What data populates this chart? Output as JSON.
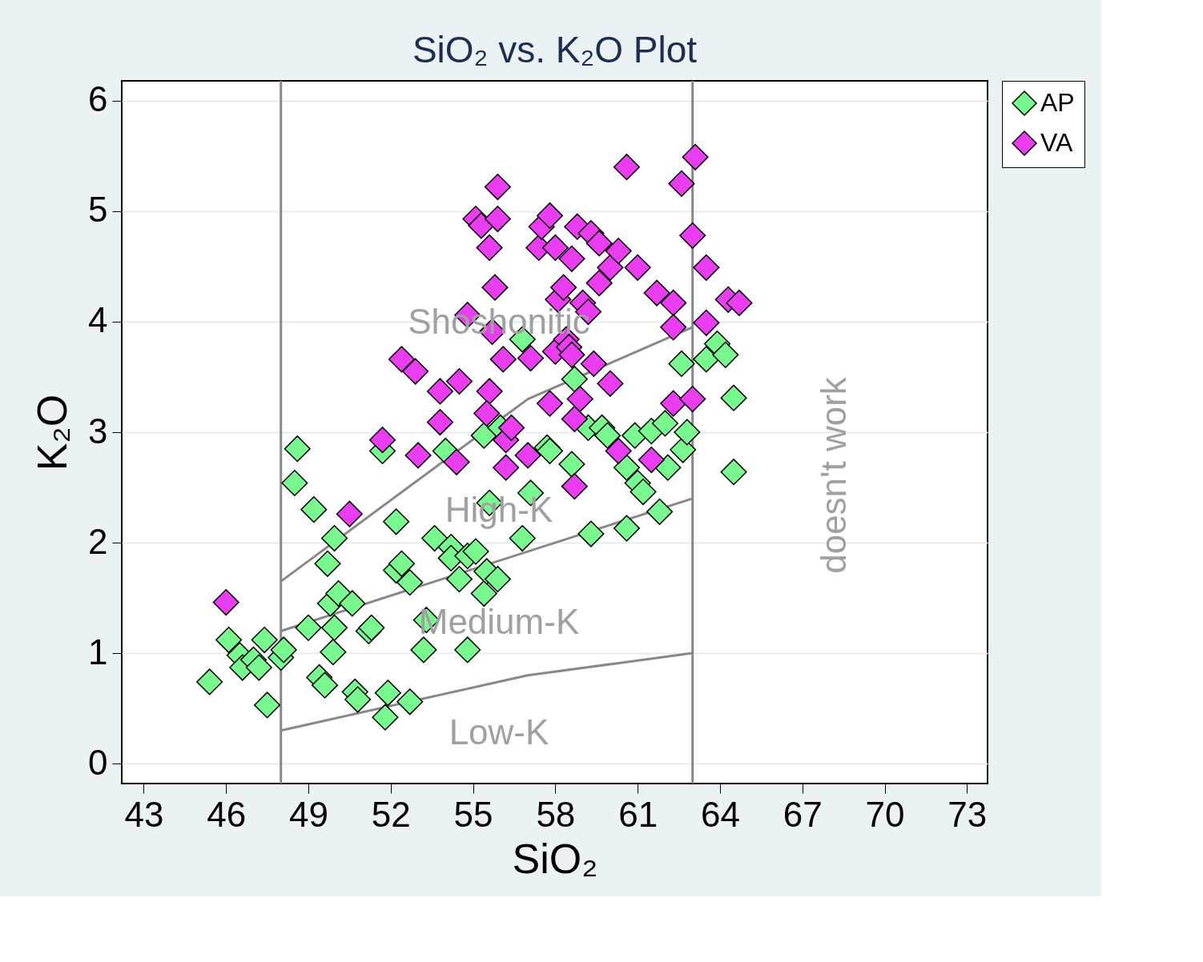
{
  "chart_data": {
    "type": "scatter",
    "title": "SiO₂ vs. K₂O Plot",
    "xlabel": "SiO₂",
    "ylabel": "K₂O",
    "xlim": [
      42.2,
      73.75
    ],
    "xticks": [
      43,
      46,
      49,
      52,
      55,
      58,
      61,
      64,
      67,
      70,
      73
    ],
    "ylim": [
      -0.18,
      6.18
    ],
    "yticks": [
      0,
      1,
      2,
      3,
      4,
      5,
      6
    ],
    "grid": "y",
    "legend": "right",
    "marker": "diamond",
    "series": [
      {
        "name": "AP",
        "color": "#7af890",
        "x": [
          45.4,
          46.1,
          46.5,
          46.6,
          47.0,
          47.2,
          47.4,
          47.5,
          48.0,
          48.1,
          48.6,
          48.5,
          49.0,
          49.2,
          49.4,
          49.6,
          49.7,
          49.8,
          49.9,
          49.95,
          50.1,
          49.95,
          50.6,
          50.7,
          50.8,
          51.2,
          51.3,
          51.7,
          51.9,
          51.8,
          52.2,
          52.2,
          52.4,
          52.7,
          52.7,
          53.2,
          53.3,
          53.6,
          54.0,
          54.2,
          54.2,
          54.5,
          54.8,
          54.8,
          55.1,
          55.4,
          55.5,
          55.6,
          55.4,
          55.9,
          56.0,
          56.8,
          57.1,
          56.8,
          57.7,
          57.8,
          58.6,
          58.7,
          59.3,
          59.2,
          59.7,
          59.9,
          60.3,
          60.6,
          60.6,
          60.9,
          61.0,
          61.2,
          61.5,
          61.8,
          62.1,
          62.0,
          62.6,
          62.65,
          62.8,
          63.5,
          63.9,
          64.2,
          64.5,
          64.5
        ],
        "values": [
          0.74,
          1.12,
          0.98,
          0.87,
          0.94,
          0.87,
          1.12,
          0.53,
          0.96,
          1.03,
          2.85,
          2.54,
          1.23,
          2.3,
          0.78,
          0.71,
          1.81,
          1.45,
          1.01,
          1.23,
          1.54,
          2.04,
          1.45,
          0.65,
          0.58,
          1.2,
          1.23,
          2.83,
          0.64,
          0.42,
          2.19,
          1.75,
          1.81,
          1.64,
          0.56,
          1.03,
          1.3,
          2.04,
          2.83,
          1.96,
          1.86,
          1.67,
          1.88,
          1.03,
          1.92,
          1.54,
          1.74,
          2.36,
          2.97,
          1.67,
          3.04,
          2.04,
          2.45,
          3.84,
          2.86,
          2.83,
          2.71,
          3.48,
          2.08,
          3.04,
          3.04,
          2.97,
          null,
          2.13,
          2.68,
          2.97,
          2.54,
          2.46,
          3.01,
          2.28,
          2.68,
          3.08,
          3.62,
          2.84,
          3.0,
          3.66,
          3.8,
          3.7,
          3.31,
          2.64
        ]
      },
      {
        "name": "VA",
        "color": "#ea3cf0",
        "x": [
          46.0,
          50.5,
          51.7,
          52.4,
          52.9,
          53.0,
          53.8,
          53.8,
          54.5,
          54.4,
          54.8,
          55.1,
          55.3,
          55.6,
          55.9,
          55.9,
          55.8,
          55.6,
          55.5,
          55.7,
          56.1,
          56.2,
          56.2,
          56.4,
          57.0,
          57.1,
          57.4,
          57.5,
          57.8,
          58.0,
          57.8,
          58.0,
          58.1,
          58.3,
          58.4,
          58.5,
          58.6,
          58.7,
          58.9,
          58.7,
          58.6,
          58.8,
          59.0,
          59.2,
          59.3,
          59.4,
          59.6,
          59.6,
          60.0,
          60.0,
          60.3,
          60.6,
          60.3,
          61.0,
          61.5,
          61.7,
          62.3,
          62.3,
          62.6,
          63.1,
          63.0,
          63.5,
          63.5,
          62.3,
          63.0,
          64.3,
          64.7
        ],
        "values": [
          1.46,
          2.26,
          2.93,
          3.66,
          3.55,
          2.79,
          3.09,
          3.37,
          3.46,
          2.73,
          4.06,
          4.93,
          4.87,
          4.67,
          4.93,
          5.22,
          4.31,
          3.37,
          3.17,
          3.91,
          3.66,
          2.93,
          2.68,
          3.04,
          2.79,
          3.67,
          4.67,
          4.86,
          4.96,
          4.67,
          3.26,
          3.73,
          4.2,
          4.31,
          3.84,
          3.77,
          3.7,
          3.12,
          3.3,
          2.51,
          4.57,
          4.86,
          4.17,
          4.09,
          4.8,
          3.62,
          4.71,
          4.35,
          3.44,
          4.49,
          4.64,
          5.4,
          2.83,
          4.49,
          2.75,
          4.26,
          4.17,
          3.95,
          5.25,
          5.49,
          4.78,
          4.49,
          3.99,
          3.26,
          3.3,
          4.2,
          4.17
        ]
      },
      {
        "type": "line",
        "color": "#888888",
        "marker": "none",
        "line_style": "solid",
        "x": [
          48,
          57,
          63
        ],
        "values": [
          0.3,
          0.8,
          1.0
        ]
      },
      {
        "type": "line",
        "color": "#888888",
        "marker": "none",
        "line_style": "solid",
        "x": [
          48,
          63
        ],
        "values": [
          1.2,
          2.4
        ]
      },
      {
        "type": "line",
        "color": "#888888",
        "marker": "none",
        "line_style": "solid",
        "x": [
          48,
          57,
          63
        ],
        "values": [
          1.65,
          3.3,
          3.95
        ]
      }
    ],
    "ref_lines": [
      {
        "axis": "x",
        "value": 48,
        "color": "#888888"
      },
      {
        "axis": "x",
        "value": 63,
        "color": "#888888"
      }
    ],
    "annotations": [
      "Shoshonitic",
      "High-K",
      "Medium-K",
      "Low-K",
      "doesn't work"
    ]
  }
}
